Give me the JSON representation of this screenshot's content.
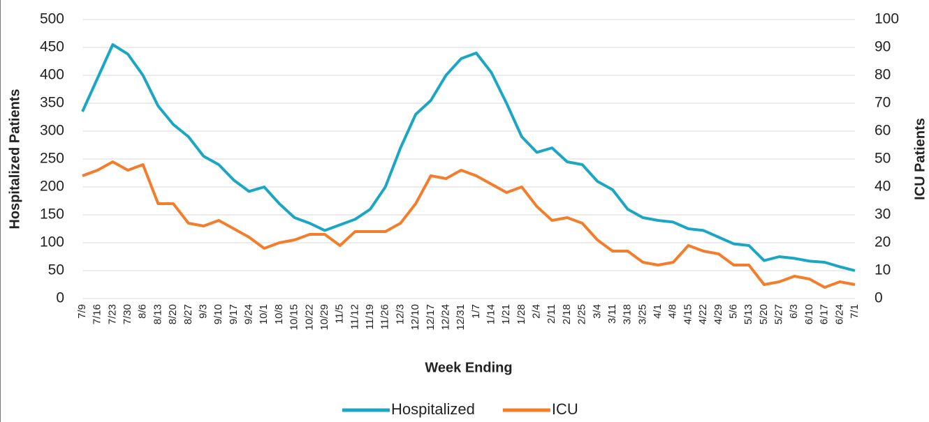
{
  "chart_data": {
    "type": "line",
    "x_label": "Week Ending",
    "y_label": "Hospitalized Patients",
    "y2_label": "ICU Patients",
    "categories": [
      "7/9",
      "7/16",
      "7/23",
      "7/30",
      "8/6",
      "8/13",
      "8/20",
      "8/27",
      "9/3",
      "9/10",
      "9/17",
      "9/24",
      "10/1",
      "10/8",
      "10/15",
      "10/22",
      "10/29",
      "11/5",
      "11/12",
      "11/19",
      "11/26",
      "12/3",
      "12/10",
      "12/17",
      "12/24",
      "12/31",
      "1/7",
      "1/14",
      "1/21",
      "1/28",
      "2/4",
      "2/11",
      "2/18",
      "2/25",
      "3/4",
      "3/11",
      "3/18",
      "3/25",
      "4/1",
      "4/8",
      "4/15",
      "4/22",
      "4/29",
      "5/6",
      "5/13",
      "5/20",
      "5/27",
      "6/3",
      "6/10",
      "6/17",
      "6/24",
      "7/1"
    ],
    "series": [
      {
        "name": "Hospitalized",
        "color": "#1ba6c3",
        "values": [
          335,
          395,
          455,
          438,
          400,
          345,
          312,
          290,
          255,
          240,
          212,
          192,
          200,
          170,
          145,
          135,
          122,
          132,
          142,
          160,
          200,
          270,
          330,
          355,
          400,
          430,
          440,
          405,
          350,
          290,
          262,
          270,
          245,
          240,
          210,
          195,
          160,
          145,
          140,
          137,
          125,
          122,
          110,
          98,
          95,
          68,
          75,
          72,
          67,
          65,
          57,
          50
        ]
      },
      {
        "name": "ICU",
        "color": "#f47d2b",
        "axis": "y2",
        "values": [
          44,
          46,
          49,
          46,
          48,
          34,
          34,
          27,
          26,
          28,
          25,
          22,
          18,
          20,
          21,
          23,
          23,
          19,
          24,
          24,
          24,
          27,
          34,
          44,
          43,
          46,
          44,
          41,
          38,
          40,
          33,
          28,
          29,
          27,
          21,
          17,
          17,
          13,
          12,
          13,
          19,
          17,
          16,
          12,
          12,
          5,
          6,
          8,
          7,
          4,
          6,
          5
        ]
      }
    ],
    "ylim": [
      0,
      500
    ],
    "yticks": [
      0,
      50,
      100,
      150,
      200,
      250,
      300,
      350,
      400,
      450,
      500
    ],
    "y2lim": [
      0,
      100
    ],
    "y2ticks": [
      0,
      10,
      20,
      30,
      40,
      50,
      60,
      70,
      80,
      90,
      100
    ],
    "grid": true,
    "legend": "bottom"
  }
}
